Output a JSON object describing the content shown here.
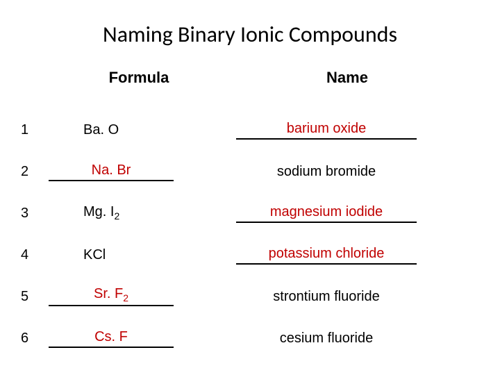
{
  "title": "Naming Binary Ionic Compounds",
  "headers": {
    "formula": "Formula",
    "name": "Name"
  },
  "rows": [
    {
      "num": "1",
      "formula": "Ba. O",
      "formula_sub": "",
      "formula_is_answer": false,
      "name": "barium oxide",
      "name_is_answer": true
    },
    {
      "num": "2",
      "formula": "Na. Br",
      "formula_sub": "",
      "formula_is_answer": true,
      "name": "sodium bromide",
      "name_is_answer": false
    },
    {
      "num": "3",
      "formula": "Mg. I",
      "formula_sub": "2",
      "formula_is_answer": false,
      "name": "magnesium iodide",
      "name_is_answer": true
    },
    {
      "num": "4",
      "formula": "KCl",
      "formula_sub": "",
      "formula_is_answer": false,
      "name": "potassium chloride",
      "name_is_answer": true
    },
    {
      "num": "5",
      "formula": "Sr. F",
      "formula_sub": "2",
      "formula_is_answer": true,
      "name": "strontium fluoride",
      "name_is_answer": false
    },
    {
      "num": "6",
      "formula": "Cs. F",
      "formula_sub": "",
      "formula_is_answer": true,
      "name": "cesium fluoride",
      "name_is_answer": false
    }
  ],
  "colors": {
    "answer": "#c00000",
    "text": "#000000",
    "background": "#ffffff"
  },
  "fontsize": {
    "title": 32,
    "header": 22,
    "body": 20,
    "sub": 14
  }
}
